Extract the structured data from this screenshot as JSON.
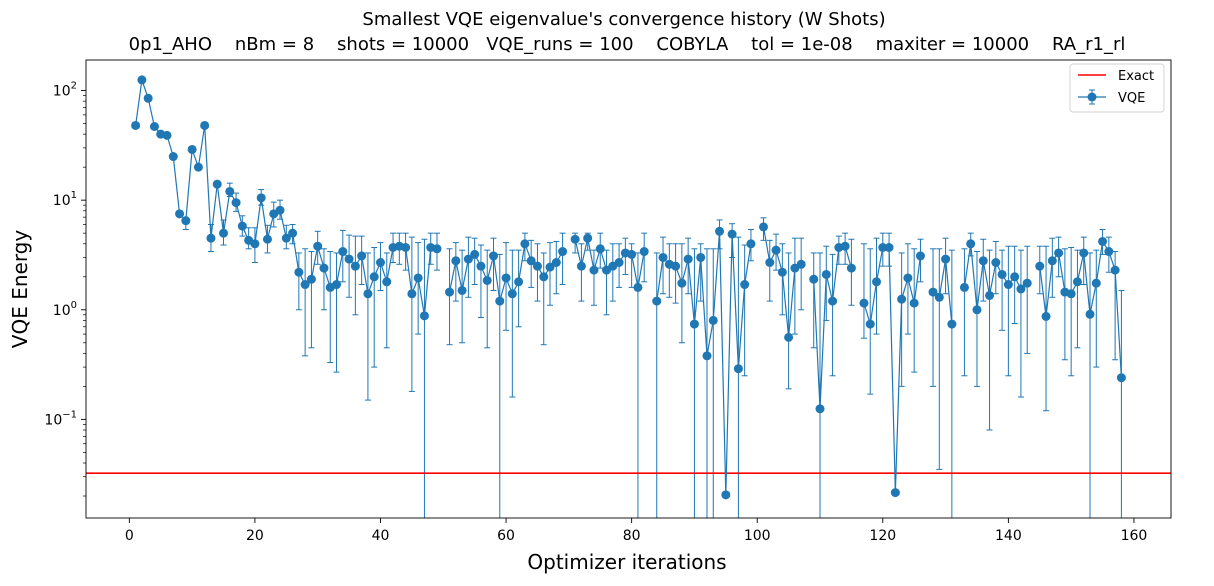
{
  "chart_data": {
    "type": "line",
    "title": "Smallest VQE eigenvalue's convergence history (W Shots)",
    "subtitle": "0p1_AHO    nBm = 8    shots = 10000   VQE_runs = 100    COBYLA    tol = 1e-08    maxiter = 10000    RA_r1_rl",
    "xlabel": "Optimizer iterations",
    "ylabel": "VQE Energy",
    "xlim": [
      -6.9,
      165.9
    ],
    "ylim": [
      0.0126,
      190
    ],
    "yscale": "log",
    "x_ticks": [
      0,
      20,
      40,
      60,
      80,
      100,
      120,
      140,
      160
    ],
    "y_ticks": [
      {
        "value": 0.1,
        "base": "10",
        "exp": "−1"
      },
      {
        "value": 1,
        "base": "10",
        "exp": "0"
      },
      {
        "value": 10,
        "base": "10",
        "exp": "1"
      },
      {
        "value": 100,
        "base": "10",
        "exp": "2"
      }
    ],
    "grid": false,
    "legend_position": "top-right",
    "colors": {
      "vqe": "#1f77b4",
      "exact": "#ff0000"
    },
    "exact": {
      "name": "Exact",
      "value": 0.0323
    },
    "series": [
      {
        "name": "VQE",
        "x": [
          1,
          2,
          3,
          4,
          5,
          6,
          7,
          8,
          9,
          10,
          11,
          12,
          13,
          14,
          15,
          16,
          17,
          18,
          19,
          20,
          21,
          22,
          23,
          24,
          25,
          26,
          27,
          28,
          29,
          30,
          31,
          32,
          33,
          34,
          35,
          36,
          37,
          38,
          39,
          40,
          41,
          42,
          43,
          44,
          45,
          46,
          47,
          48,
          49,
          50,
          51,
          52,
          53,
          54,
          55,
          56,
          57,
          58,
          59,
          60,
          61,
          62,
          63,
          64,
          65,
          66,
          67,
          68,
          69,
          70,
          71,
          72,
          73,
          74,
          75,
          76,
          77,
          78,
          79,
          80,
          81,
          82,
          83,
          84,
          85,
          86,
          87,
          88,
          89,
          90,
          91,
          92,
          93,
          94,
          95,
          96,
          97,
          98,
          99,
          100,
          101,
          102,
          103,
          104,
          105,
          106,
          107,
          108,
          109,
          110,
          111,
          112,
          113,
          114,
          115,
          116,
          117,
          118,
          119,
          120,
          121,
          122,
          123,
          124,
          125,
          126,
          127,
          128,
          129,
          130,
          131,
          132,
          133,
          134,
          135,
          136,
          137,
          138,
          139,
          140,
          141,
          142,
          143,
          144,
          145,
          146,
          147,
          148,
          149,
          150,
          151,
          152,
          153,
          154,
          155,
          156,
          157,
          158
        ],
        "values": [
          48.0,
          125.0,
          85.0,
          47.0,
          40.0,
          39.0,
          25.0,
          7.5,
          6.5,
          29.0,
          20.0,
          48.0,
          4.5,
          14.0,
          5.0,
          12.0,
          9.5,
          5.8,
          4.3,
          4.0,
          10.5,
          4.4,
          7.5,
          8.1,
          4.5,
          5.0,
          2.2,
          1.7,
          1.9,
          3.8,
          2.4,
          1.6,
          1.7,
          3.4,
          2.9,
          2.5,
          3.1,
          1.4,
          2.0,
          2.7,
          1.8,
          3.7,
          3.8,
          3.7,
          1.4,
          1.95,
          0.88,
          3.7,
          3.6,
          null,
          1.45,
          2.8,
          1.5,
          2.9,
          3.2,
          2.5,
          1.85,
          3.1,
          1.2,
          1.95,
          1.4,
          1.8,
          4.0,
          2.8,
          2.5,
          2.0,
          2.45,
          2.7,
          3.4,
          null,
          4.4,
          2.5,
          4.5,
          2.3,
          3.6,
          2.3,
          2.5,
          2.7,
          3.3,
          3.2,
          1.6,
          3.4,
          null,
          1.2,
          3.0,
          2.6,
          2.5,
          1.75,
          2.9,
          0.74,
          3.0,
          0.38,
          0.8,
          5.2,
          0.0205,
          4.9,
          0.29,
          1.7,
          4.0,
          null,
          5.7,
          2.7,
          3.5,
          2.2,
          0.56,
          2.4,
          2.6,
          null,
          1.9,
          0.125,
          2.1,
          1.2,
          3.7,
          3.8,
          2.4,
          null,
          1.15,
          0.74,
          1.8,
          3.7,
          3.7,
          0.0215,
          1.25,
          1.95,
          1.15,
          3.1,
          null,
          1.45,
          1.3,
          2.9,
          0.74,
          null,
          1.6,
          4.0,
          1.0,
          2.8,
          1.35,
          2.7,
          2.1,
          1.7,
          2.0,
          1.55,
          1.75,
          null,
          2.5,
          0.87,
          2.8,
          3.3,
          1.45,
          1.4,
          1.8,
          3.3,
          0.91,
          1.75,
          4.2,
          3.4,
          2.3,
          0.24
        ],
        "err_high": [
          null,
          null,
          null,
          null,
          null,
          null,
          null,
          null,
          6.1,
          null,
          null,
          null,
          6.0,
          null,
          6.6,
          14.3,
          11.6,
          7.2,
          5.6,
          5.6,
          12.5,
          5.9,
          9.6,
          10.0,
          5.9,
          6.0,
          3.3,
          3.6,
          3.4,
          5.2,
          3.6,
          3.4,
          3.3,
          5.3,
          4.8,
          4.7,
          4.7,
          3.3,
          3.7,
          4.1,
          3.3,
          5.0,
          5.0,
          5.0,
          4.6,
          4.1,
          4.4,
          5.0,
          5.0,
          null,
          3.6,
          4.1,
          3.5,
          4.6,
          4.5,
          3.9,
          3.5,
          4.5,
          3.2,
          4.1,
          3.5,
          3.5,
          5.0,
          4.3,
          4.0,
          3.3,
          4.1,
          4.2,
          5.0,
          null,
          5.0,
          4.0,
          5.0,
          3.5,
          5.0,
          3.5,
          4.0,
          4.0,
          4.5,
          4.0,
          3.3,
          5.0,
          null,
          3.3,
          4.6,
          4.0,
          4.0,
          4.0,
          4.5,
          3.6,
          4.0,
          3.6,
          3.6,
          6.6,
          null,
          6.1,
          4.6,
          3.9,
          5.4,
          null,
          6.9,
          4.3,
          4.9,
          4.0,
          3.3,
          4.5,
          4.5,
          null,
          3.3,
          3.3,
          3.8,
          3.2,
          4.7,
          5.0,
          4.4,
          null,
          4.0,
          3.6,
          4.5,
          5.0,
          5.0,
          null,
          3.3,
          4.0,
          3.6,
          4.4,
          null,
          3.6,
          3.6,
          4.5,
          3.5,
          null,
          3.6,
          5.0,
          3.4,
          4.4,
          3.5,
          4.2,
          3.5,
          3.8,
          3.8,
          3.5,
          3.8,
          null,
          3.8,
          3.8,
          4.5,
          4.6,
          3.6,
          3.7,
          3.5,
          4.6,
          3.3,
          3.5,
          5.4,
          4.6,
          3.4,
          1.5
        ],
        "err_low": [
          null,
          null,
          null,
          null,
          null,
          null,
          null,
          null,
          5.4,
          null,
          null,
          null,
          3.4,
          null,
          3.9,
          10.8,
          7.9,
          4.7,
          3.6,
          2.7,
          9.0,
          3.3,
          5.7,
          6.7,
          3.6,
          4.0,
          1.0,
          0.38,
          0.45,
          2.6,
          1.0,
          0.33,
          0.27,
          1.8,
          1.3,
          0.9,
          1.7,
          0.15,
          0.3,
          1.5,
          0.45,
          2.7,
          2.6,
          2.3,
          0.18,
          0.6,
          null,
          2.6,
          2.3,
          null,
          0.48,
          1.2,
          0.5,
          1.3,
          1.7,
          0.85,
          0.45,
          1.5,
          null,
          0.65,
          0.16,
          0.7,
          2.8,
          1.6,
          1.2,
          0.48,
          1.1,
          1.4,
          1.7,
          null,
          3.3,
          1.2,
          3.5,
          1.1,
          2.4,
          0.9,
          1.2,
          1.6,
          2.1,
          1.6,
          null,
          1.8,
          null,
          null,
          1.4,
          1.3,
          1.15,
          0.5,
          1.4,
          null,
          1.2,
          null,
          null,
          3.6,
          null,
          3.0,
          null,
          0.25,
          2.8,
          null,
          4.3,
          1.2,
          2.3,
          0.9,
          0.19,
          0.6,
          1.0,
          null,
          0.45,
          null,
          0.8,
          0.25,
          2.6,
          2.6,
          1.1,
          null,
          0.55,
          0.17,
          0.6,
          2.5,
          2.5,
          null,
          0.2,
          0.6,
          0.27,
          1.8,
          null,
          0.2,
          0.035,
          1.4,
          null,
          null,
          0.25,
          3.1,
          0.2,
          1.2,
          0.08,
          1.4,
          0.65,
          0.25,
          0.75,
          0.16,
          0.4,
          null,
          1.4,
          0.12,
          1.3,
          2.0,
          0.35,
          0.25,
          0.45,
          1.7,
          null,
          0.3,
          3.2,
          2.2,
          0.35,
          null
        ]
      }
    ]
  }
}
